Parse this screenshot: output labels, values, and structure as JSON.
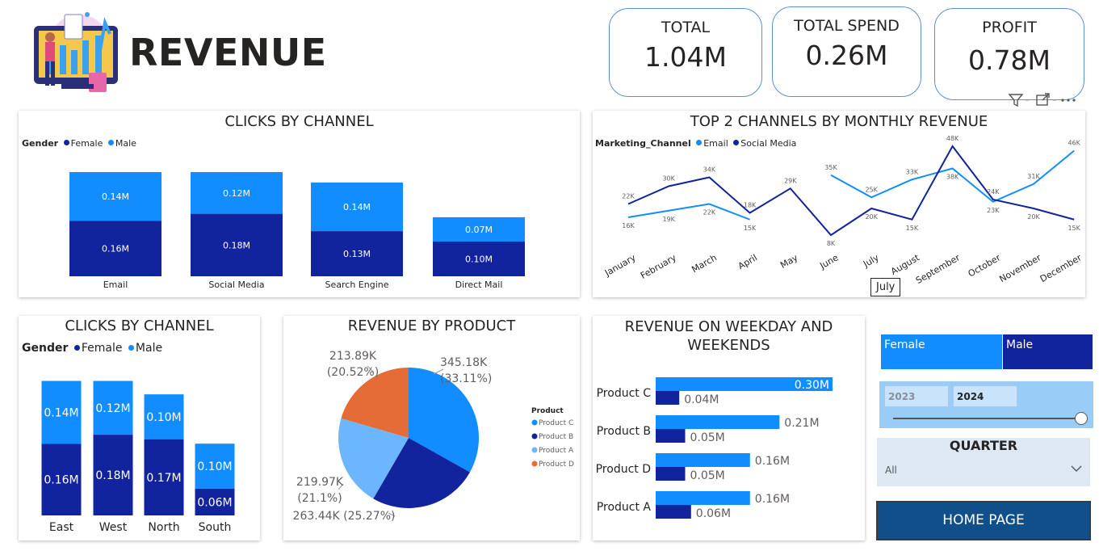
{
  "colors": {
    "dark": "#12239e",
    "light": "#118dff",
    "pale": "#6cb6ff",
    "orange": "#e66c37"
  },
  "header": {
    "title": "REVENUE"
  },
  "kpis": [
    {
      "label": "TOTAL",
      "value": "1.04M"
    },
    {
      "label": "TOTAL SPEND",
      "value": "0.26M"
    },
    {
      "label": "PROFIT",
      "value": "0.78M"
    }
  ],
  "tooltip": "July",
  "chart_data": [
    {
      "type": "bar",
      "title": "CLICKS BY CHANNEL",
      "legend_title": "Gender",
      "categories": [
        "Email",
        "Social Media",
        "Search Engine",
        "Direct Mail"
      ],
      "series": [
        {
          "name": "Female",
          "values": [
            0.16,
            0.18,
            0.13,
            0.1
          ],
          "labels": [
            "0.16M",
            "0.18M",
            "0.13M",
            "0.10M"
          ]
        },
        {
          "name": "Male",
          "values": [
            0.14,
            0.12,
            0.14,
            0.07
          ],
          "labels": [
            "0.14M",
            "0.12M",
            "0.14M",
            "0.07M"
          ]
        }
      ]
    },
    {
      "type": "line",
      "title": "TOP 2 CHANNELS BY MONTHLY REVENUE",
      "legend_title": "Marketing_Channel",
      "categories": [
        "January",
        "February",
        "March",
        "April",
        "May",
        "June",
        "July",
        "August",
        "September",
        "October",
        "November",
        "December"
      ],
      "series": [
        {
          "name": "Email",
          "values": [
            16,
            19,
            22,
            15,
            null,
            35,
            25,
            33,
            38,
            23,
            31,
            46
          ],
          "labels": [
            "16K",
            "19K",
            "22K",
            "15K",
            "",
            "35K",
            "25K",
            "33K",
            "38K",
            "23K",
            "31K",
            "46K"
          ]
        },
        {
          "name": "Social Media",
          "values": [
            22,
            30,
            34,
            18,
            29,
            8,
            20,
            15,
            48,
            24,
            20,
            15
          ],
          "labels": [
            "22K",
            "30K",
            "34K",
            "18K",
            "29K",
            "8K",
            "20K",
            "15K",
            "48K",
            "24K",
            "20K",
            "15K"
          ]
        }
      ]
    },
    {
      "type": "bar",
      "title": "CLICKS BY CHANNEL",
      "legend_title": "Gender",
      "categories": [
        "East",
        "West",
        "North",
        "South"
      ],
      "series": [
        {
          "name": "Female",
          "values": [
            0.16,
            0.18,
            0.17,
            0.06
          ],
          "labels": [
            "0.16M",
            "0.18M",
            "0.17M",
            "0.06M"
          ]
        },
        {
          "name": "Male",
          "values": [
            0.14,
            0.12,
            0.1,
            0.1
          ],
          "labels": [
            "0.14M",
            "0.12M",
            "0.10M",
            "0.10M"
          ]
        }
      ]
    },
    {
      "type": "pie",
      "title": "REVENUE BY PRODUCT",
      "legend_title": "Product",
      "categories": [
        "Product C",
        "Product B",
        "Product A",
        "Product D"
      ],
      "values": [
        345.18,
        263.44,
        219.97,
        213.89
      ],
      "labels": [
        [
          "345.18K",
          "(33.11%)"
        ],
        [
          "263.44K (25.27%)"
        ],
        [
          "219.97K",
          "(21.1%)"
        ],
        [
          "213.89K",
          "(20.52%)"
        ]
      ]
    },
    {
      "type": "bar",
      "title": "REVENUE ON WEEKDAY AND WEEKENDS",
      "title_lines": [
        "REVENUE ON WEEKDAY AND",
        "WEEKENDS"
      ],
      "categories": [
        "Product C",
        "Product B",
        "Product D",
        "Product A"
      ],
      "series": [
        {
          "values": [
            0.3,
            0.21,
            0.16,
            0.16
          ],
          "labels": [
            "0.30M",
            "0.21M",
            "0.16M",
            "0.16M"
          ]
        },
        {
          "values": [
            0.04,
            0.05,
            0.05,
            0.06
          ],
          "labels": [
            "0.04M",
            "0.05M",
            "0.05M",
            "0.06M"
          ]
        }
      ]
    }
  ],
  "slicers": {
    "gender": [
      "Female",
      "Male"
    ],
    "years": [
      "2023",
      "2024"
    ],
    "quarter": {
      "title": "QUARTER",
      "value": "All"
    },
    "home_button": "HOME PAGE"
  }
}
